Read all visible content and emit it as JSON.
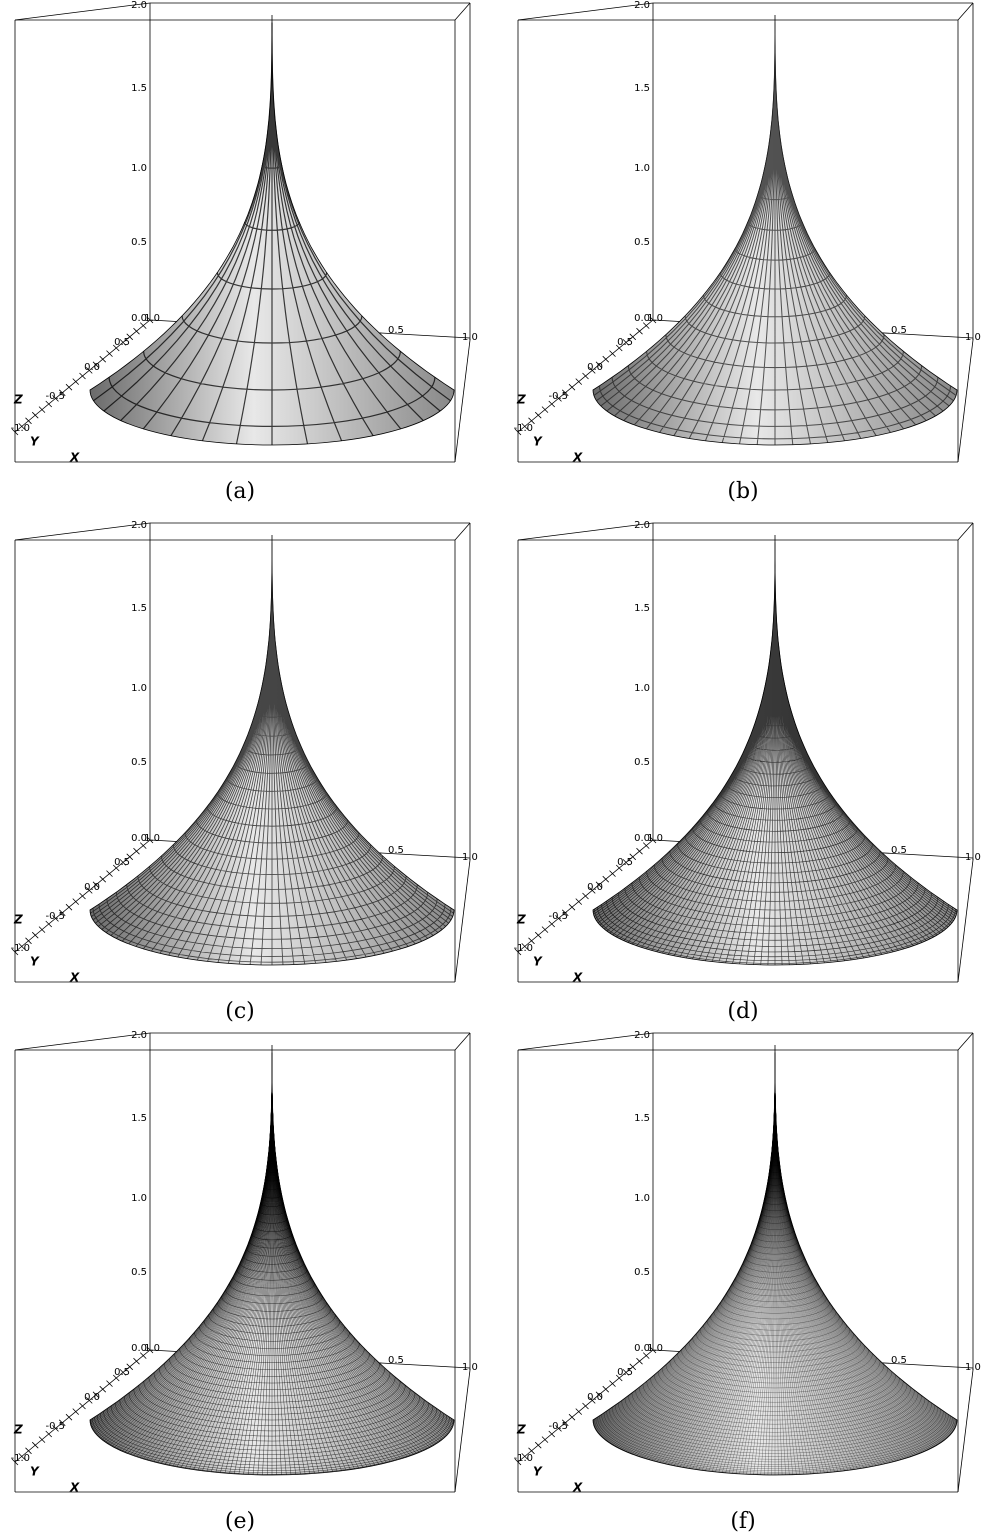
{
  "panels": [
    {
      "caption": "(a)",
      "z_ticks": [
        "2.0",
        "1.5",
        "1.0",
        "0.5",
        "0.0"
      ],
      "y_ticks": [
        "-1.0",
        "-0.5",
        "0.0",
        "0.5",
        "1.0"
      ],
      "x_ticks": [
        "0.5",
        "1.0"
      ],
      "axis_labels": [
        "Z",
        "Y",
        "X"
      ]
    },
    {
      "caption": "(b)",
      "z_ticks": [
        "2.0",
        "1.5",
        "1.0",
        "0.5",
        "0.0"
      ],
      "y_ticks": [
        "-1.0",
        "-0.5",
        "0.0",
        "0.5",
        "1.0"
      ],
      "x_ticks": [
        "0.5",
        "1.0"
      ],
      "axis_labels": [
        "Z",
        "Y",
        "X"
      ]
    },
    {
      "caption": "(c)",
      "z_ticks": [
        "2.0",
        "1.5",
        "1.0",
        "0.5",
        "0.0"
      ],
      "y_ticks": [
        "-1.0",
        "-0.5",
        "0.0",
        "0.5",
        "1.0"
      ],
      "x_ticks": [
        "0.5",
        "1.0"
      ],
      "axis_labels": [
        "Z",
        "Y",
        "X"
      ]
    },
    {
      "caption": "(d)",
      "z_ticks": [
        "2.0",
        "1.5",
        "1.0",
        "0.5",
        "0.0"
      ],
      "y_ticks": [
        "-1.0",
        "-0.5",
        "0.0",
        "0.5",
        "1.0"
      ],
      "x_ticks": [
        "0.5",
        "1.0"
      ],
      "axis_labels": [
        "Z",
        "Y",
        "X"
      ]
    },
    {
      "caption": "(e)",
      "z_ticks": [
        "2.0",
        "1.5",
        "1.0",
        "0.5",
        "0.0"
      ],
      "y_ticks": [
        "-1.0",
        "-0.5",
        "0.0",
        "0.5",
        "1.0"
      ],
      "x_ticks": [
        "0.5",
        "1.0"
      ],
      "axis_labels": [
        "Z",
        "Y",
        "X"
      ]
    },
    {
      "caption": "(f)",
      "z_ticks": [
        "2.0",
        "1.5",
        "1.0",
        "0.5",
        "0.0"
      ],
      "y_ticks": [
        "-1.0",
        "-0.5",
        "0.0",
        "0.5",
        "1.0"
      ],
      "x_ticks": [
        "0.5",
        "1.0"
      ],
      "axis_labels": [
        "Z",
        "Y",
        "X"
      ]
    }
  ]
}
